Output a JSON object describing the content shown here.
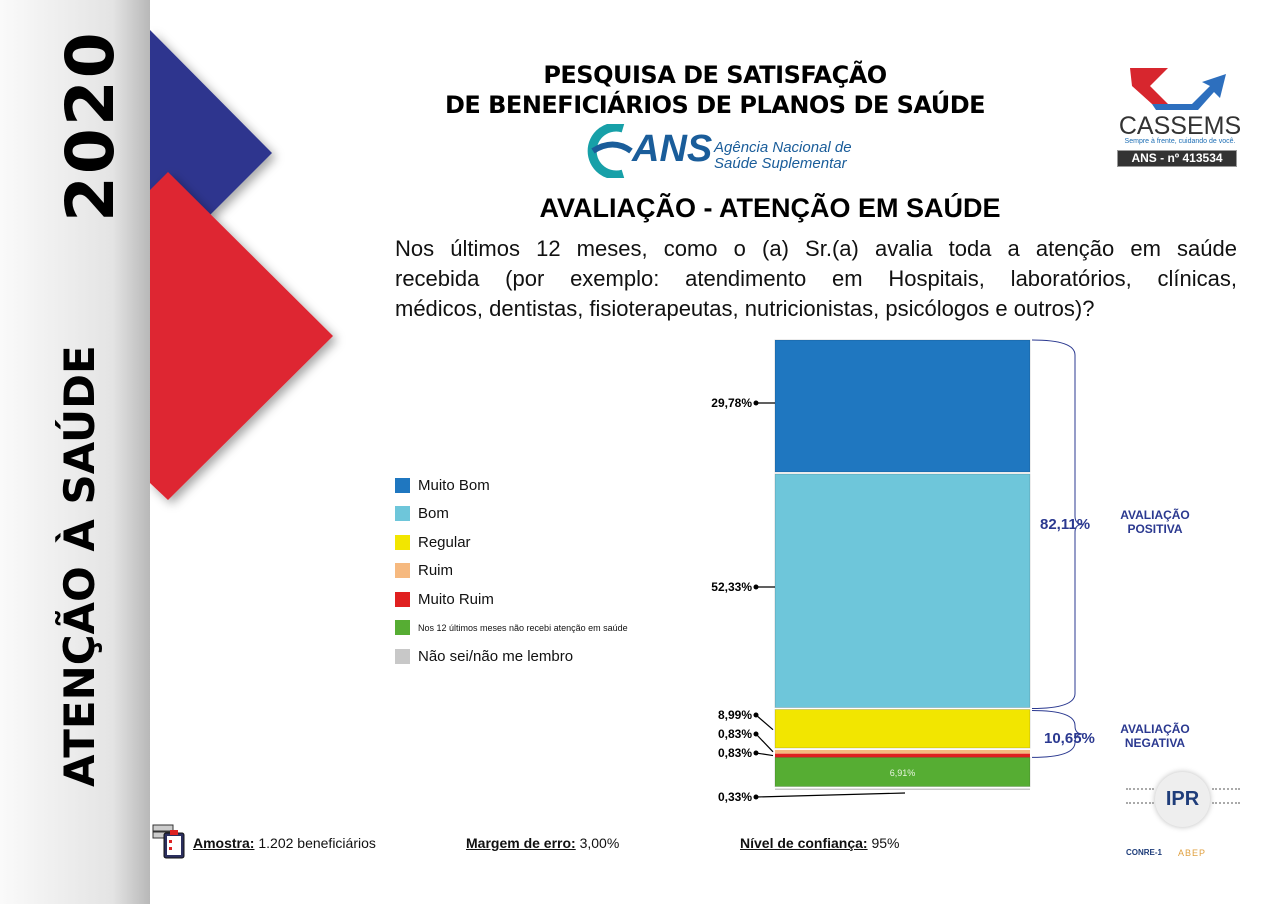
{
  "sidebar": {
    "year": "2020",
    "title": "ATENÇÃO À SAÚDE"
  },
  "header": {
    "title_line1": "PESQUISA DE SATISFAÇÃO",
    "title_line2": "DE BENEFICIÁRIOS DE PLANOS DE SAÚDE",
    "ans_logo": "ANS",
    "ans_name_line1": "Agência Nacional de",
    "ans_name_line2": "Saúde Suplementar"
  },
  "brand": {
    "name": "CASSEMS",
    "tagline": "Sempre à frente, cuidando de você.",
    "ans_number": "ANS - nº 413534"
  },
  "section_title": "AVALIAÇÃO - ATENÇÃO EM SAÚDE",
  "question": [
    "Nos últimos 12 meses, como o (a) Sr.(a) avalia toda a atenção em saúde",
    "recebida (por exemplo: atendimento em Hospitais, laboratórios, clínicas,",
    "médicos, dentistas, fisioterapeutas, nutricionistas, psicólogos e outros)?"
  ],
  "chart_data": {
    "type": "stacked-bar",
    "series": [
      {
        "name": "Muito Bom",
        "value": 29.78,
        "label": "29,78%",
        "color": "#1f77c0"
      },
      {
        "name": "Bom",
        "value": 52.33,
        "label": "52,33%",
        "color": "#6ec6da"
      },
      {
        "name": "Regular",
        "value": 8.99,
        "label": "8,99%",
        "color": "#f2e600"
      },
      {
        "name": "Ruim",
        "value": 0.83,
        "label": "0,83%",
        "color": "#f6b97f"
      },
      {
        "name": "Muito Ruim",
        "value": 0.83,
        "label": "0,83%",
        "color": "#e02020"
      },
      {
        "name": "Nos 12 últimos meses não  recebi atenção em saúde",
        "value": 6.91,
        "label": "6,91%",
        "color": "#56ad33"
      },
      {
        "name": "Não sei/não me lembro",
        "value": 0.33,
        "label": "0,33%",
        "color": "#c8c8c8"
      }
    ],
    "groups": [
      {
        "label_line1": "AVALIAÇÃO",
        "label_line2": "POSITIVA",
        "value": "82,11%"
      },
      {
        "label_line1": "AVALIAÇÃO",
        "label_line2": "NEGATIVA",
        "value": "10,65%"
      }
    ],
    "legend_placement": "left"
  },
  "footer": {
    "sample_label": "Amostra:",
    "sample_value": "1.202 beneficiários",
    "margin_label": "Margem de erro:",
    "margin_value": "3,00%",
    "confidence_label": "Nível de confiança:",
    "confidence_value": "95%"
  },
  "partners": {
    "ipr": "IPR",
    "conre": "CONRE-1",
    "abep": "ABEP"
  }
}
